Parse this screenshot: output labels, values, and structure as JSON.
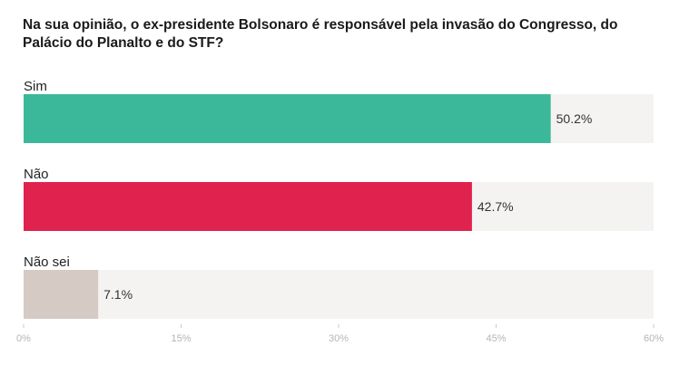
{
  "chart_data": {
    "type": "bar",
    "orientation": "horizontal",
    "title": "Na sua opinião, o ex-presidente Bolsonaro é responsável pela invasão do Congresso, do Palácio do Planalto e do STF?",
    "categories": [
      "Sim",
      "Não",
      "Não sei"
    ],
    "values": [
      50.2,
      42.7,
      7.1
    ],
    "value_labels": [
      "50.2%",
      "42.7%",
      "7.1%"
    ],
    "colors": [
      "#3bb89a",
      "#e0224f",
      "#d5cac4"
    ],
    "track_color": "#f4f3f1",
    "xlim": [
      0,
      60
    ],
    "xticks": [
      0,
      15,
      30,
      45,
      60
    ],
    "xtick_labels": [
      "0%",
      "15%",
      "30%",
      "45%",
      "60%"
    ],
    "grid": false
  }
}
